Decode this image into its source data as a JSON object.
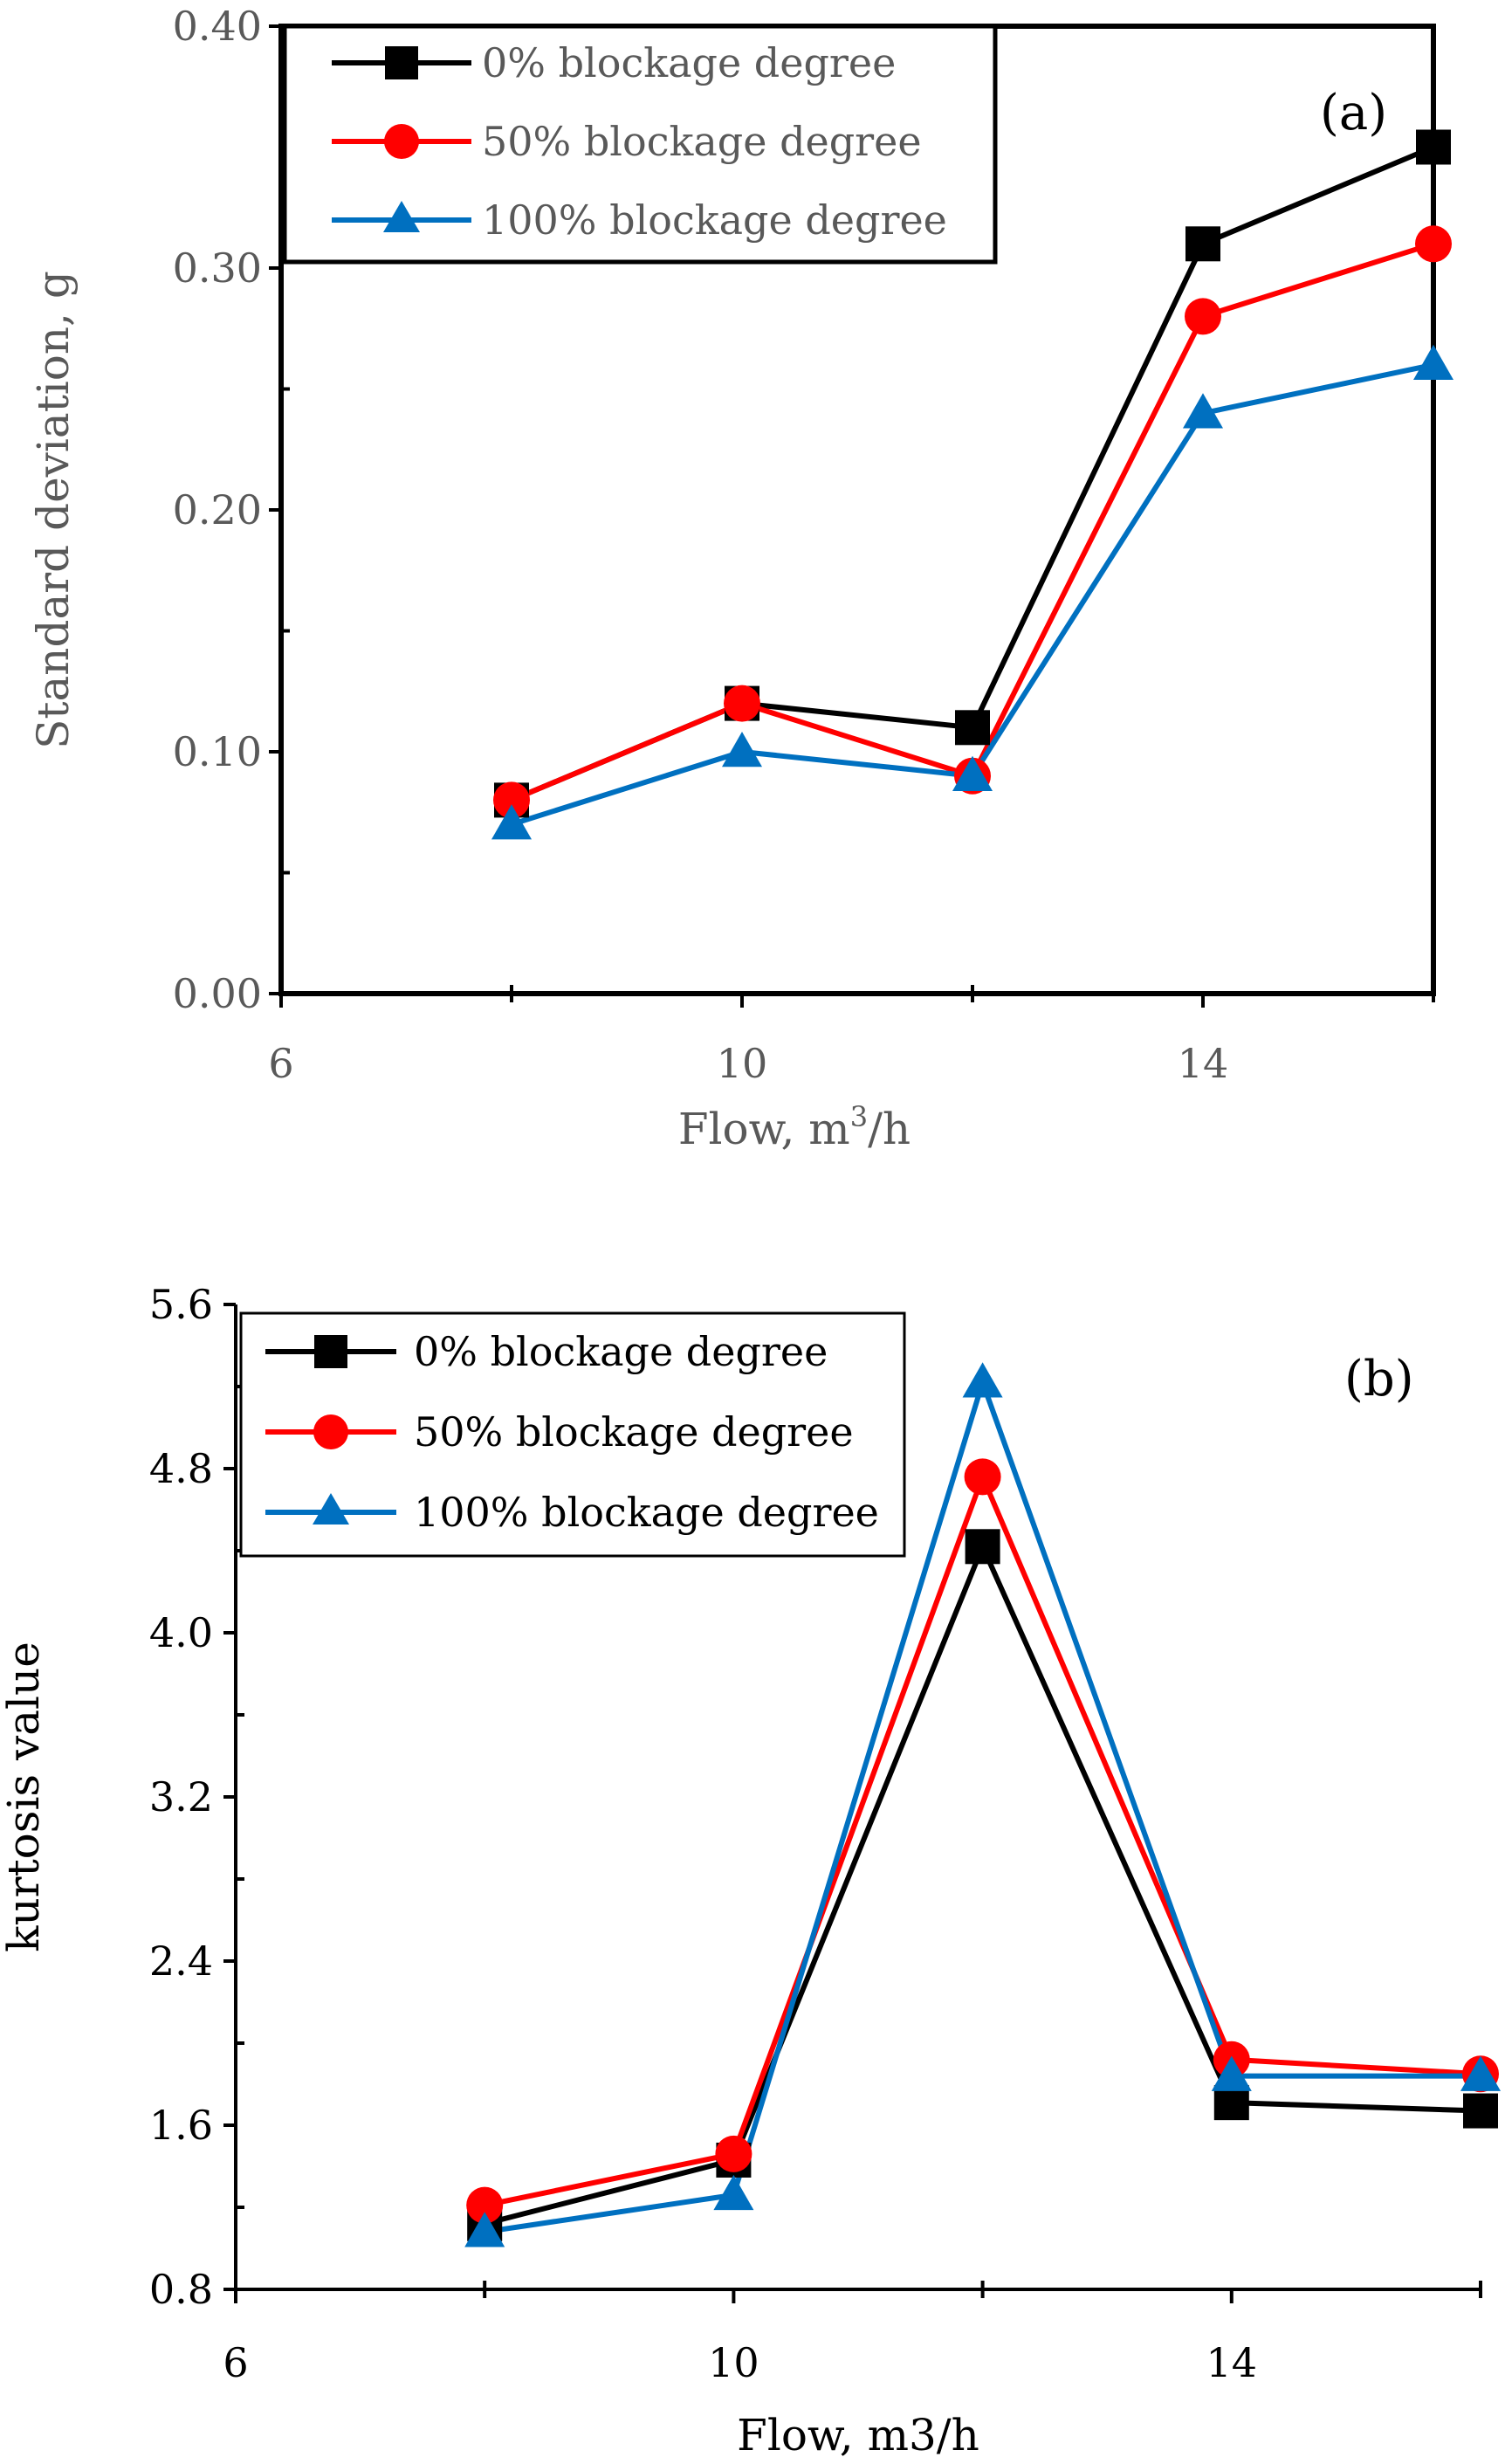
{
  "chart_data": [
    {
      "type": "line",
      "panel_label": "(a)",
      "xlabel_main": "Flow, m",
      "xlabel_sup": "3",
      "xlabel_end": "/h",
      "ylabel": "Standard deviation, g",
      "xlim": [
        6,
        16
      ],
      "ylim": [
        0,
        0.4
      ],
      "x_ticks": [
        6,
        10,
        14
      ],
      "x_tick_labels": [
        "6",
        "10",
        "14"
      ],
      "x_minor_ticks": [
        8,
        12,
        16
      ],
      "y_ticks": [
        0,
        0.1,
        0.2,
        0.3,
        0.4
      ],
      "y_tick_labels": [
        "0.00",
        "0.10",
        "0.20",
        "0.30",
        "0.40"
      ],
      "y_minor_ticks": [
        0.05,
        0.15,
        0.25,
        0.35
      ],
      "x": [
        8,
        10,
        12,
        14,
        16
      ],
      "series": [
        {
          "name": "0% blockage degree",
          "color": "#000000",
          "marker": "square",
          "values": [
            0.08,
            0.12,
            0.11,
            0.31,
            0.35
          ]
        },
        {
          "name": "50% blockage degree",
          "color": "#ff0000",
          "marker": "circle",
          "values": [
            0.08,
            0.12,
            0.09,
            0.28,
            0.31
          ]
        },
        {
          "name": "100% blockage degree",
          "color": "#0070c0",
          "marker": "triangle",
          "values": [
            0.07,
            0.1,
            0.09,
            0.24,
            0.26
          ]
        }
      ]
    },
    {
      "type": "line",
      "panel_label": "(b)",
      "xlabel": "Flow, m3/h",
      "ylabel": "kurtosis value",
      "xlim": [
        6,
        16
      ],
      "ylim": [
        0.8,
        5.6
      ],
      "x_ticks": [
        6,
        10,
        14
      ],
      "x_tick_labels": [
        "6",
        "10",
        "14"
      ],
      "x_minor_ticks": [
        8,
        12,
        16
      ],
      "y_ticks": [
        0.8,
        1.6,
        2.4,
        3.2,
        4.0,
        4.8,
        5.6
      ],
      "y_tick_labels": [
        "0.8",
        "1.6",
        "2.4",
        "3.2",
        "4.0",
        "4.8",
        "5.6"
      ],
      "y_minor_ticks": [
        1.2,
        2.0,
        2.8,
        3.6,
        4.4,
        5.2
      ],
      "x": [
        8,
        10,
        12,
        14,
        16
      ],
      "series": [
        {
          "name": "0% blockage degree",
          "color": "#000000",
          "marker": "square",
          "values": [
            1.12,
            1.43,
            4.42,
            1.71,
            1.67
          ]
        },
        {
          "name": "50% blockage degree",
          "color": "#ff0000",
          "marker": "circle",
          "values": [
            1.21,
            1.46,
            4.76,
            1.92,
            1.85
          ]
        },
        {
          "name": "100% blockage degree",
          "color": "#0070c0",
          "marker": "triangle",
          "values": [
            1.08,
            1.26,
            5.22,
            1.84,
            1.84
          ]
        }
      ]
    }
  ]
}
